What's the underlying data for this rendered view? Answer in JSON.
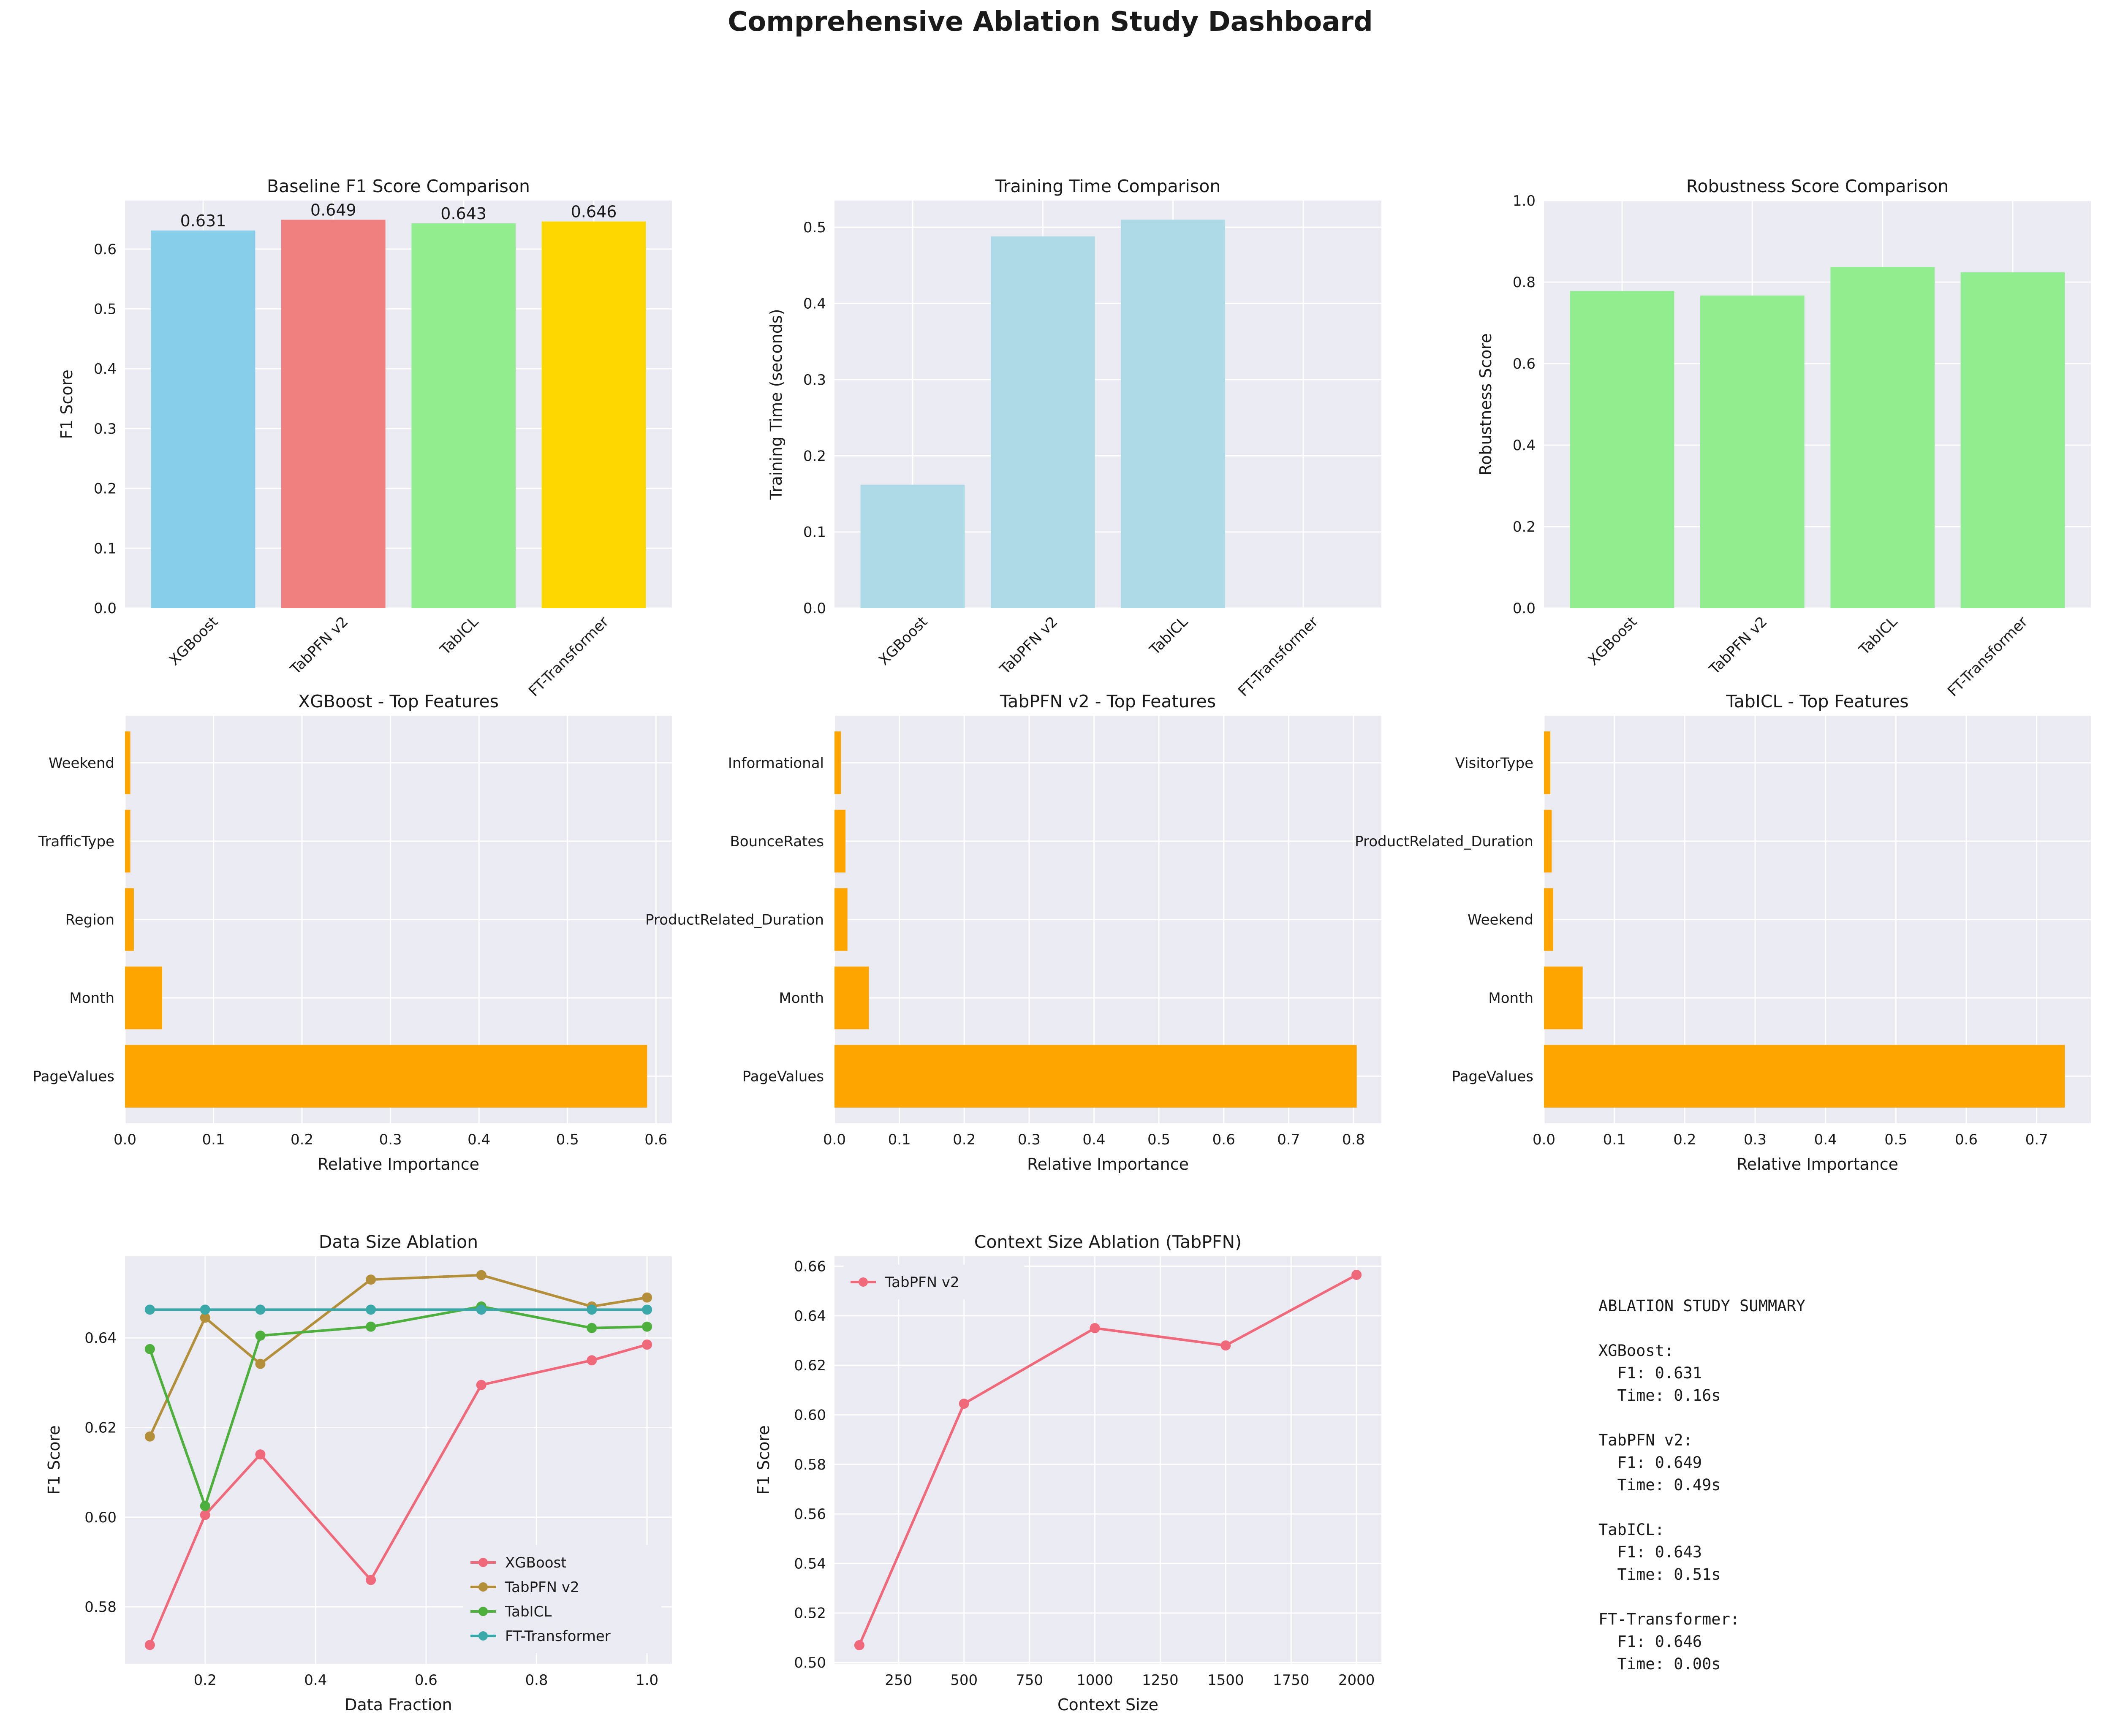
{
  "page": {
    "title": "Comprehensive Ablation Study Dashboard"
  },
  "colors": {
    "panel_bg": "#EAEAF2",
    "grid": "#FFFFFF",
    "importance_bar": "#FFA500",
    "time_bar": "#ADD8E6",
    "robust_bar": "#90EE90"
  },
  "summary": {
    "heading": "ABLATION STUDY SUMMARY",
    "lines": [
      "XGBoost:",
      "  F1: 0.631",
      "  Time: 0.16s",
      "",
      "TabPFN v2:",
      "  F1: 0.649",
      "  Time: 0.49s",
      "",
      "TabICL:",
      "  F1: 0.643",
      "  Time: 0.51s",
      "",
      "FT-Transformer:",
      "  F1: 0.646",
      "  Time: 0.00s"
    ]
  },
  "chart_data": [
    {
      "id": "baseline_f1",
      "type": "bar",
      "title": "Baseline F1 Score Comparison",
      "xlabel": "",
      "ylabel": "F1 Score",
      "categories": [
        "XGBoost",
        "TabPFN v2",
        "TabICL",
        "FT-Transformer"
      ],
      "values": [
        0.631,
        0.649,
        0.643,
        0.646
      ],
      "value_labels": [
        "0.631",
        "0.649",
        "0.643",
        "0.646"
      ],
      "bar_colors": [
        "#87CEEB",
        "#F08080",
        "#90EE90",
        "#FFD700"
      ],
      "ylim": [
        0,
        0.681
      ],
      "yticks": [
        0,
        0.1,
        0.2,
        0.3,
        0.4,
        0.5,
        0.6
      ],
      "ytick_labels": [
        "0.0",
        "0.1",
        "0.2",
        "0.3",
        "0.4",
        "0.5",
        "0.6"
      ],
      "grid": true
    },
    {
      "id": "training_time",
      "type": "bar",
      "title": "Training Time Comparison",
      "xlabel": "",
      "ylabel": "Training Time (seconds)",
      "categories": [
        "XGBoost",
        "TabPFN v2",
        "TabICL",
        "FT-Transformer"
      ],
      "values": [
        0.162,
        0.488,
        0.51,
        0.0
      ],
      "bar_color": "#ADD8E6",
      "ylim": [
        0,
        0.535
      ],
      "yticks": [
        0,
        0.1,
        0.2,
        0.3,
        0.4,
        0.5
      ],
      "ytick_labels": [
        "0.0",
        "0.1",
        "0.2",
        "0.3",
        "0.4",
        "0.5"
      ],
      "grid": true
    },
    {
      "id": "robustness",
      "type": "bar",
      "title": "Robustness Score Comparison",
      "xlabel": "",
      "ylabel": "Robustness Score",
      "categories": [
        "XGBoost",
        "TabPFN v2",
        "TabICL",
        "FT-Transformer"
      ],
      "values": [
        0.778,
        0.767,
        0.837,
        0.824
      ],
      "bar_color": "#90EE90",
      "ylim": [
        0,
        1.0
      ],
      "yticks": [
        0,
        0.2,
        0.4,
        0.6,
        0.8,
        1.0
      ],
      "ytick_labels": [
        "0.0",
        "0.2",
        "0.4",
        "0.6",
        "0.8",
        "1.0"
      ],
      "grid": true
    },
    {
      "id": "xgb_features",
      "type": "bar",
      "orientation": "horizontal",
      "title": "XGBoost - Top Features",
      "xlabel": "Relative Importance",
      "ylabel": "",
      "categories": [
        "PageValues",
        "Month",
        "Region",
        "TrafficType",
        "Weekend"
      ],
      "values": [
        0.59,
        0.042,
        0.01,
        0.006,
        0.006
      ],
      "bar_color": "#FFA500",
      "xlim": [
        0,
        0.618
      ],
      "xticks": [
        0,
        0.1,
        0.2,
        0.3,
        0.4,
        0.5,
        0.6
      ],
      "xtick_labels": [
        "0.0",
        "0.1",
        "0.2",
        "0.3",
        "0.4",
        "0.5",
        "0.6"
      ],
      "grid": true
    },
    {
      "id": "tabpfn_features",
      "type": "bar",
      "orientation": "horizontal",
      "title": "TabPFN v2 - Top Features",
      "xlabel": "Relative Importance",
      "ylabel": "",
      "categories": [
        "PageValues",
        "Month",
        "ProductRelated_Duration",
        "BounceRates",
        "Informational"
      ],
      "values": [
        0.805,
        0.053,
        0.02,
        0.017,
        0.01
      ],
      "bar_color": "#FFA500",
      "xlim": [
        0,
        0.843
      ],
      "xticks": [
        0,
        0.1,
        0.2,
        0.3,
        0.4,
        0.5,
        0.6,
        0.7,
        0.8
      ],
      "xtick_labels": [
        "0.0",
        "0.1",
        "0.2",
        "0.3",
        "0.4",
        "0.5",
        "0.6",
        "0.7",
        "0.8"
      ],
      "grid": true
    },
    {
      "id": "tabicl_features",
      "type": "bar",
      "orientation": "horizontal",
      "title": "TabICL - Top Features",
      "xlabel": "Relative Importance",
      "ylabel": "",
      "categories": [
        "PageValues",
        "Month",
        "Weekend",
        "ProductRelated_Duration",
        "VisitorType"
      ],
      "values": [
        0.74,
        0.055,
        0.013,
        0.011,
        0.009
      ],
      "bar_color": "#FFA500",
      "xlim": [
        0,
        0.777
      ],
      "xticks": [
        0,
        0.1,
        0.2,
        0.3,
        0.4,
        0.5,
        0.6,
        0.7
      ],
      "xtick_labels": [
        "0.0",
        "0.1",
        "0.2",
        "0.3",
        "0.4",
        "0.5",
        "0.6",
        "0.7"
      ],
      "grid": true
    },
    {
      "id": "data_size",
      "type": "line",
      "title": "Data Size Ablation",
      "xlabel": "Data Fraction",
      "ylabel": "F1 Score",
      "x": [
        0.1,
        0.2,
        0.3,
        0.5,
        0.7,
        0.9,
        1.0
      ],
      "series": [
        {
          "name": "XGBoost",
          "color": "#F0697A",
          "values": [
            0.5715,
            0.6005,
            0.614,
            0.586,
            0.6295,
            0.635,
            0.6385
          ]
        },
        {
          "name": "TabPFN v2",
          "color": "#B48F3A",
          "values": [
            0.618,
            0.6445,
            0.6342,
            0.653,
            0.654,
            0.647,
            0.649
          ]
        },
        {
          "name": "TabICL",
          "color": "#4DAF3C",
          "values": [
            0.6375,
            0.6025,
            0.6405,
            0.6425,
            0.647,
            0.6422,
            0.6425
          ]
        },
        {
          "name": "FT-Transformer",
          "color": "#3AA8A8",
          "values": [
            0.6463,
            0.6463,
            0.6463,
            0.6463,
            0.6463,
            0.6463,
            0.6463
          ]
        }
      ],
      "xlim": [
        0.055,
        1.045
      ],
      "ylim": [
        0.5673,
        0.6582
      ],
      "xticks": [
        0.2,
        0.4,
        0.6,
        0.8,
        1.0
      ],
      "xtick_labels": [
        "0.2",
        "0.4",
        "0.6",
        "0.8",
        "1.0"
      ],
      "yticks": [
        0.58,
        0.6,
        0.62,
        0.64
      ],
      "ytick_labels": [
        "0.58",
        "0.60",
        "0.62",
        "0.64"
      ],
      "legend": "lower-right",
      "grid": true
    },
    {
      "id": "context_size",
      "type": "line",
      "title": "Context Size Ablation (TabPFN)",
      "xlabel": "Context Size",
      "ylabel": "F1 Score",
      "x": [
        100,
        500,
        1000,
        1500,
        2000
      ],
      "series": [
        {
          "name": "TabPFN v2",
          "color": "#F0697A",
          "values": [
            0.507,
            0.6045,
            0.635,
            0.628,
            0.6565
          ]
        }
      ],
      "xlim": [
        5,
        2095
      ],
      "ylim": [
        0.4995,
        0.664
      ],
      "xticks": [
        250,
        500,
        750,
        1000,
        1250,
        1500,
        1750,
        2000
      ],
      "xtick_labels": [
        "250",
        "500",
        "750",
        "1000",
        "1250",
        "1500",
        "1750",
        "2000"
      ],
      "yticks": [
        0.5,
        0.52,
        0.54,
        0.56,
        0.58,
        0.6,
        0.62,
        0.64,
        0.66
      ],
      "ytick_labels": [
        "0.50",
        "0.52",
        "0.54",
        "0.56",
        "0.58",
        "0.60",
        "0.62",
        "0.64",
        "0.66"
      ],
      "legend": "upper-left",
      "grid": true
    }
  ]
}
